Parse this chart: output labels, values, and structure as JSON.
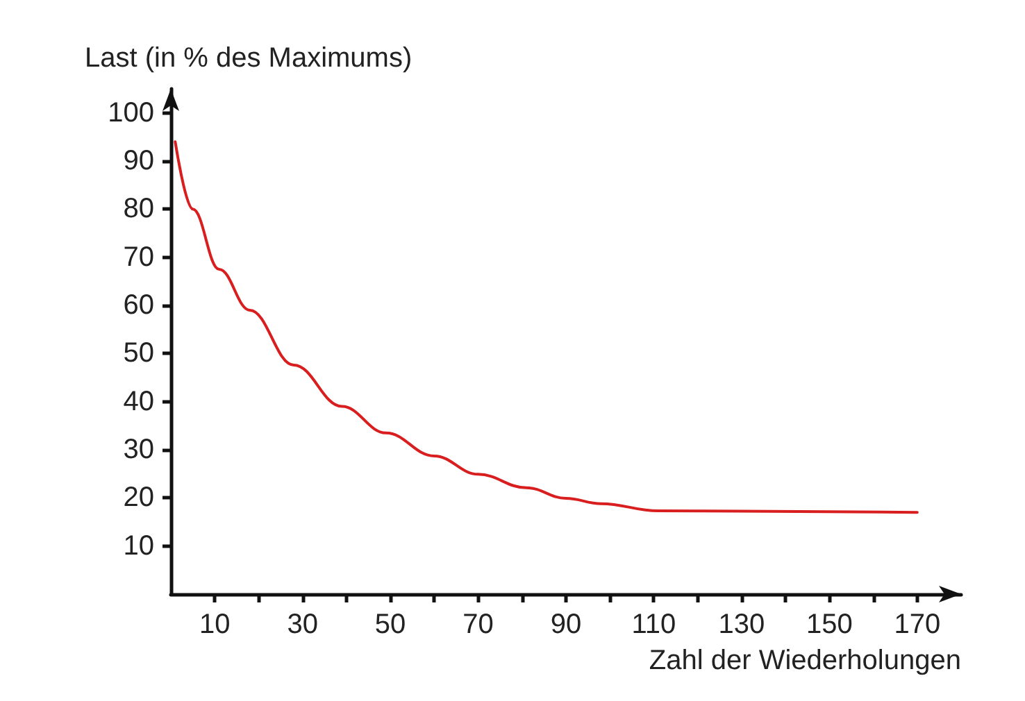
{
  "chart_data": {
    "type": "line",
    "xlabel": "Zahl der Wiederholungen",
    "ylabel": "Last (in % des Maximums)",
    "xlim": [
      0,
      180
    ],
    "ylim": [
      0,
      105
    ],
    "xticks": [
      10,
      {
        "value": 20,
        "label": null
      },
      30,
      {
        "value": 40,
        "label": null
      },
      50,
      {
        "value": 60,
        "label": null
      },
      70,
      {
        "value": 80,
        "label": null
      },
      90,
      {
        "value": 100,
        "label": null
      },
      110,
      {
        "value": 120,
        "label": null
      },
      130,
      {
        "value": 140,
        "label": null
      },
      150,
      {
        "value": 160,
        "label": null
      },
      170
    ],
    "yticks": [
      10,
      20,
      30,
      40,
      50,
      60,
      70,
      80,
      90,
      100
    ],
    "marker": "none",
    "line_style": "solid",
    "series": [
      {
        "color": "#d81e1e",
        "x": [
          1,
          5,
          11,
          18,
          28,
          39,
          49,
          60,
          70,
          81,
          90,
          98,
          111,
          170
        ],
        "values": [
          94,
          80,
          67.5,
          59,
          47.6,
          39,
          33.5,
          28.7,
          24.9,
          22.1,
          19.9,
          18.8,
          17.3,
          17
        ]
      }
    ]
  }
}
